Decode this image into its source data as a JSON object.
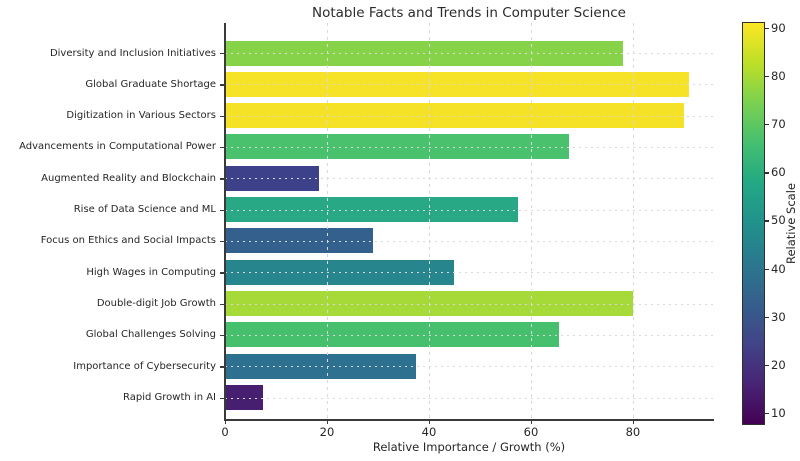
{
  "chart_data": {
    "type": "bar",
    "orientation": "horizontal",
    "title": "Notable Facts and Trends in Computer Science",
    "xlabel": "Relative Importance / Growth (%)",
    "ylabel": "",
    "categories": [
      "Diversity and Inclusion Initiatives",
      "Global Graduate Shortage",
      "Digitization in Various Sectors",
      "Advancements in Computational Power",
      "Augmented Reality and Blockchain",
      "Rise of Data Science and ML",
      "Focus on Ethics and Social Impacts",
      "High Wages in Computing",
      "Double-digit Job Growth",
      "Global Challenges Solving",
      "Importance of Cybersecurity",
      "Rapid Growth in AI"
    ],
    "values": [
      78,
      91,
      90,
      67.5,
      18.5,
      57.5,
      29,
      45,
      80,
      65.5,
      37.5,
      7.5
    ],
    "bar_colors": [
      "#86d349",
      "#f6e226",
      "#f5e125",
      "#4ac16d",
      "#3d4189",
      "#28a884",
      "#34608d",
      "#26858d",
      "#a6da38",
      "#47c06e",
      "#2e7090",
      "#471f71"
    ],
    "xlim": [
      0,
      95.7
    ],
    "x_ticks": [
      0,
      20,
      40,
      60,
      80
    ],
    "grid": true,
    "legend": "none",
    "colormap": "viridis",
    "colorbar": {
      "label": "Relative Scale",
      "min": 7.5,
      "max": 91.2,
      "ticks": [
        10,
        20,
        30,
        40,
        50,
        60,
        70,
        80,
        90
      ],
      "gradient": [
        {
          "p": 0,
          "c": "#440154"
        },
        {
          "p": 10,
          "c": "#482475"
        },
        {
          "p": 20,
          "c": "#414487"
        },
        {
          "p": 30,
          "c": "#355f8d"
        },
        {
          "p": 40,
          "c": "#2a788e"
        },
        {
          "p": 50,
          "c": "#21918c"
        },
        {
          "p": 60,
          "c": "#22a884"
        },
        {
          "p": 70,
          "c": "#44bf70"
        },
        {
          "p": 80,
          "c": "#7ad151"
        },
        {
          "p": 90,
          "c": "#bddf26"
        },
        {
          "p": 100,
          "c": "#fde725"
        }
      ]
    }
  }
}
